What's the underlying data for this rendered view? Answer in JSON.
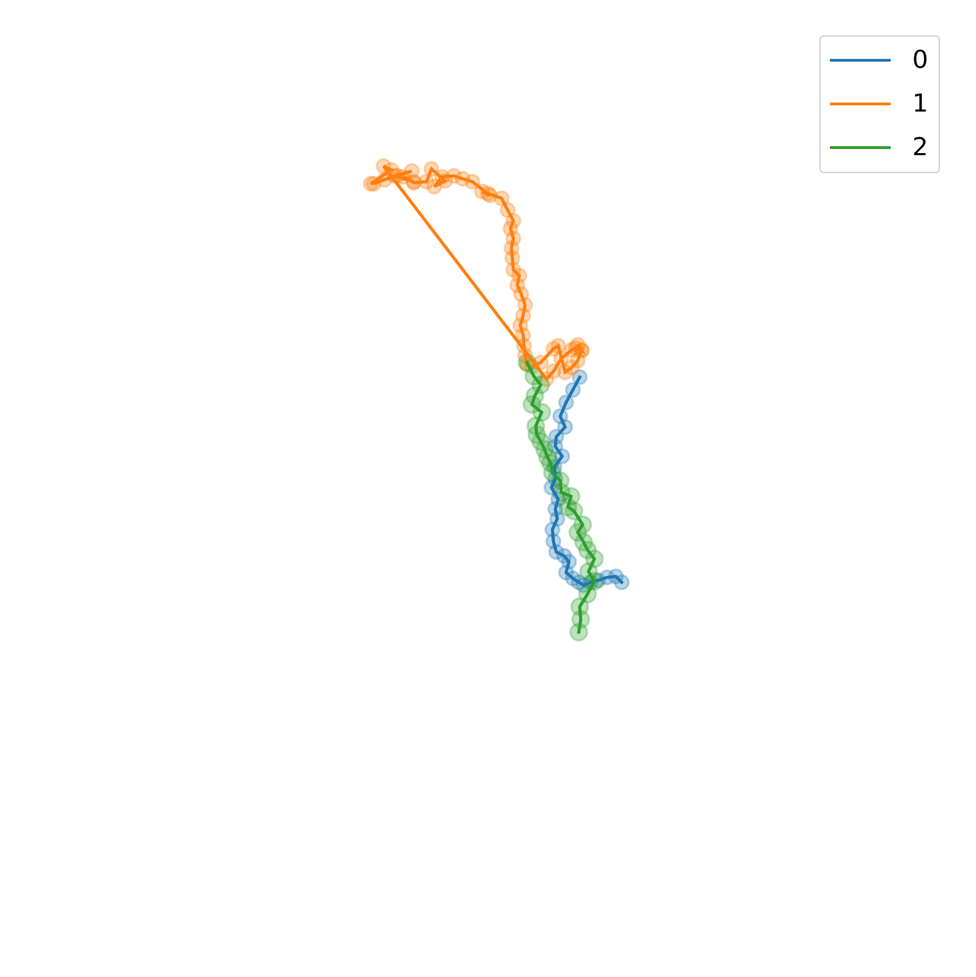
{
  "chart_data": {
    "type": "line",
    "title": "",
    "xlabel": "",
    "ylabel": "",
    "axes_visible": false,
    "grid": false,
    "legend_position": "top-right",
    "xlim": [
      0,
      100
    ],
    "ylim": [
      0,
      100
    ],
    "series": [
      {
        "name": "0",
        "color": "#1f77b4",
        "x": [
          59.4,
          58.7,
          58.0,
          57.4,
          57.9,
          57.0,
          56.9,
          57.6,
          56.8,
          56.9,
          56.5,
          57.2,
          56.9,
          57.1,
          56.6,
          56.7,
          57.0,
          57.8,
          58.3,
          58.0,
          58.7,
          59.3,
          59.8,
          60.5,
          61.3,
          62.2,
          63.1,
          63.7
        ],
        "y": [
          61.4,
          60.1,
          58.8,
          57.4,
          56.3,
          55.3,
          54.3,
          53.3,
          52.2,
          51.0,
          50.1,
          48.9,
          47.9,
          46.9,
          45.8,
          44.6,
          43.5,
          43.1,
          42.5,
          41.4,
          40.8,
          40.4,
          40.1,
          40.4,
          40.6,
          40.9,
          41.0,
          40.4
        ]
      },
      {
        "name": "1",
        "color": "#ff7f0e",
        "x": [
          54.0,
          53.8,
          53.7,
          53.6,
          53.3,
          53.6,
          53.8,
          53.4,
          53.0,
          53.2,
          52.6,
          52.5,
          52.4,
          52.6,
          52.3,
          52.6,
          52.0,
          51.4,
          50.0,
          49.4,
          50.2,
          48.4,
          47.4,
          46.5,
          45.3,
          44.5,
          45.6,
          44.2,
          43.7,
          42.4,
          41.3,
          42.4,
          40.4,
          38.3,
          39.4,
          40.7,
          42.2,
          38.0,
          40.1,
          39.3,
          56.0,
          56.7,
          57.5,
          58.6,
          59.0,
          59.6,
          59.2,
          59.6,
          59.2,
          58.6,
          57.9,
          57.2,
          56.7,
          55.4,
          54.5
        ],
        "y": [
          62.7,
          63.6,
          64.6,
          65.7,
          66.7,
          67.7,
          68.8,
          69.9,
          70.8,
          71.8,
          72.4,
          73.6,
          74.6,
          75.6,
          76.6,
          77.4,
          78.5,
          79.7,
          80.2,
          80.4,
          80.0,
          81.4,
          81.7,
          82.0,
          81.9,
          80.9,
          81.5,
          82.7,
          81.4,
          81.3,
          81.9,
          81.4,
          82.0,
          81.2,
          81.6,
          82.0,
          82.5,
          81.2,
          82.6,
          83.0,
          61.2,
          62.0,
          63.3,
          64.2,
          64.4,
          64.1,
          64.7,
          64.2,
          63.1,
          62.4,
          61.9,
          64.6,
          64.3,
          62.9,
          62.5
        ]
      },
      {
        "name": "2",
        "color": "#2ca02c",
        "x": [
          59.3,
          59.5,
          59.4,
          60.2,
          60.9,
          60.3,
          60.9,
          60.2,
          59.8,
          59.2,
          59.7,
          58.8,
          58.2,
          58.5,
          57.5,
          57.4,
          56.6,
          56.4,
          56.1,
          55.8,
          55.4,
          55.0,
          54.9,
          55.5,
          54.5,
          54.8,
          55.4,
          54.7,
          54.0
        ],
        "y": [
          35.3,
          36.6,
          37.9,
          39.2,
          40.5,
          41.5,
          42.8,
          43.7,
          44.5,
          45.5,
          46.3,
          47.7,
          48.1,
          49.2,
          49.6,
          50.8,
          51.6,
          52.6,
          53.2,
          54.0,
          54.8,
          55.5,
          56.4,
          57.8,
          58.6,
          59.5,
          60.6,
          61.5,
          62.9
        ]
      }
    ],
    "legend": [
      "0",
      "1",
      "2"
    ]
  }
}
